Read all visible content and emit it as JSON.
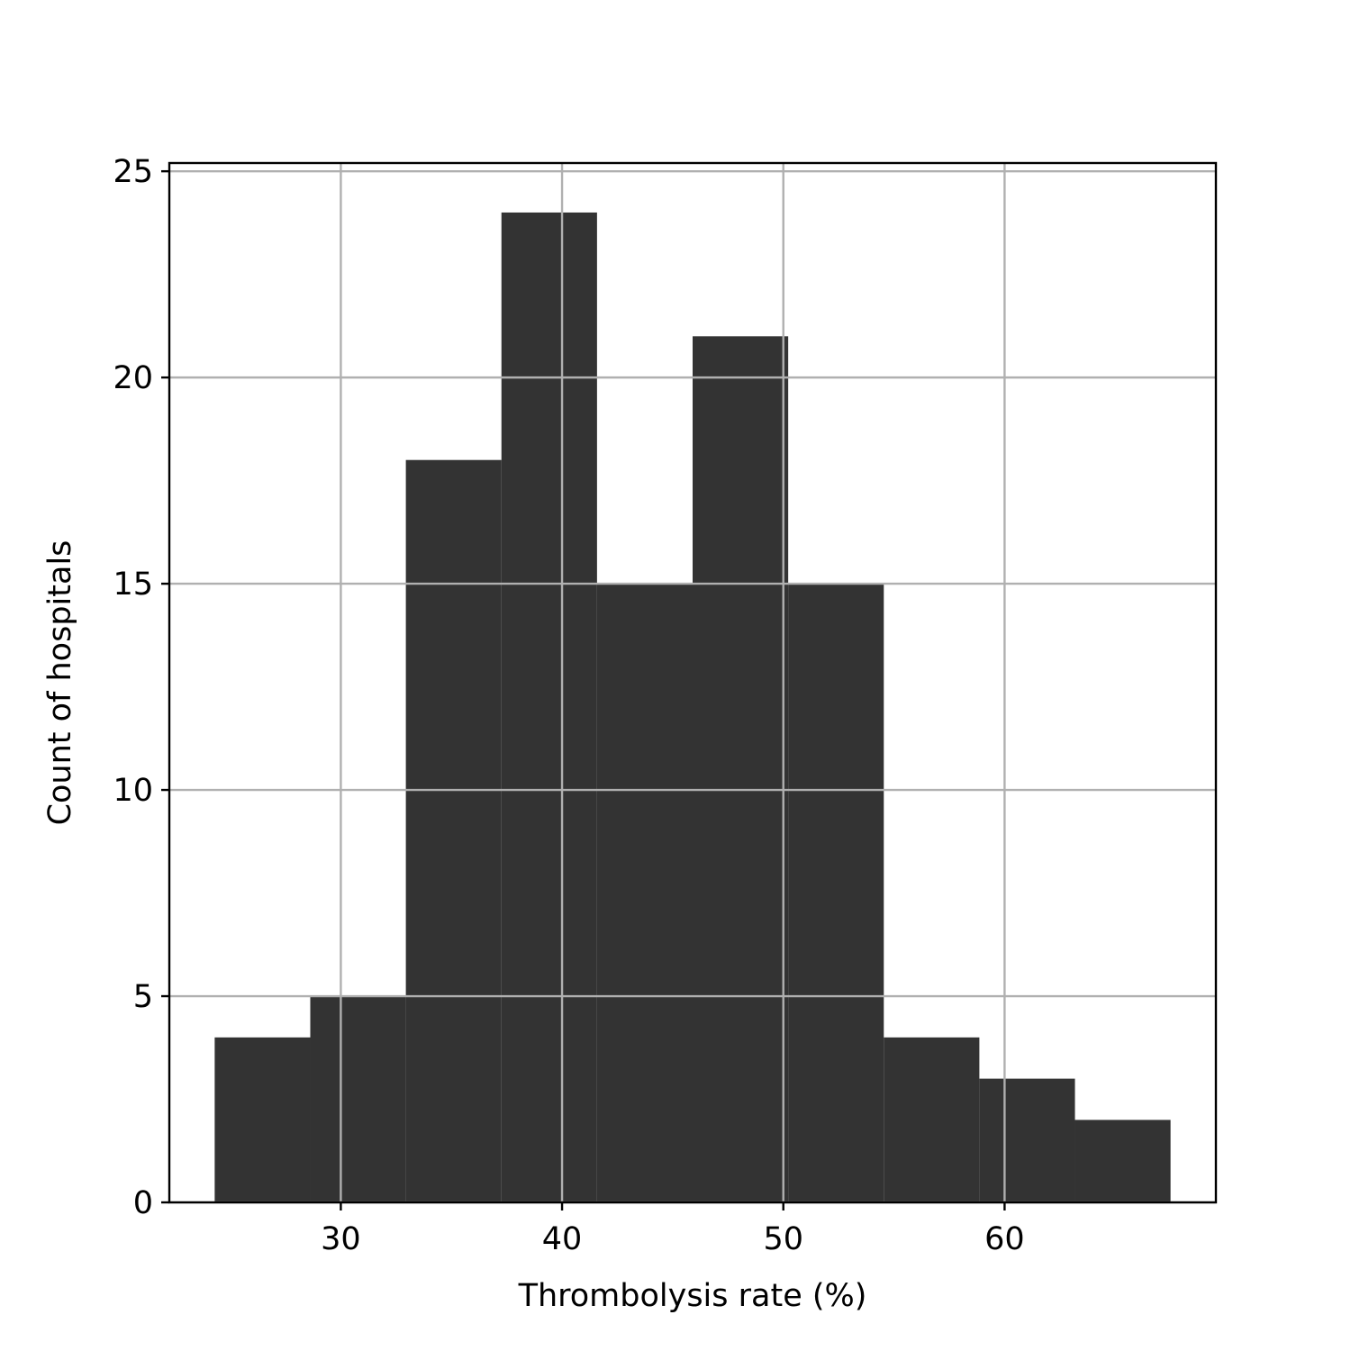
{
  "chart_data": {
    "type": "bar",
    "title": "",
    "xlabel": "Thrombolysis rate (%)",
    "ylabel": "Count of hospitals",
    "bin_edges": [
      24.3,
      28.62,
      32.94,
      37.26,
      41.58,
      45.9,
      50.22,
      54.54,
      58.86,
      63.18,
      67.5
    ],
    "values": [
      4,
      5,
      18,
      24,
      15,
      21,
      15,
      4,
      3,
      2
    ],
    "xlim": [
      22.25,
      69.55
    ],
    "ylim": [
      0,
      25.2
    ],
    "xticks": [
      30,
      40,
      50,
      60
    ],
    "yticks": [
      0,
      5,
      10,
      15,
      20,
      25
    ],
    "grid": true,
    "bar_color": "#333333",
    "grid_color": "#b0b0b0"
  }
}
